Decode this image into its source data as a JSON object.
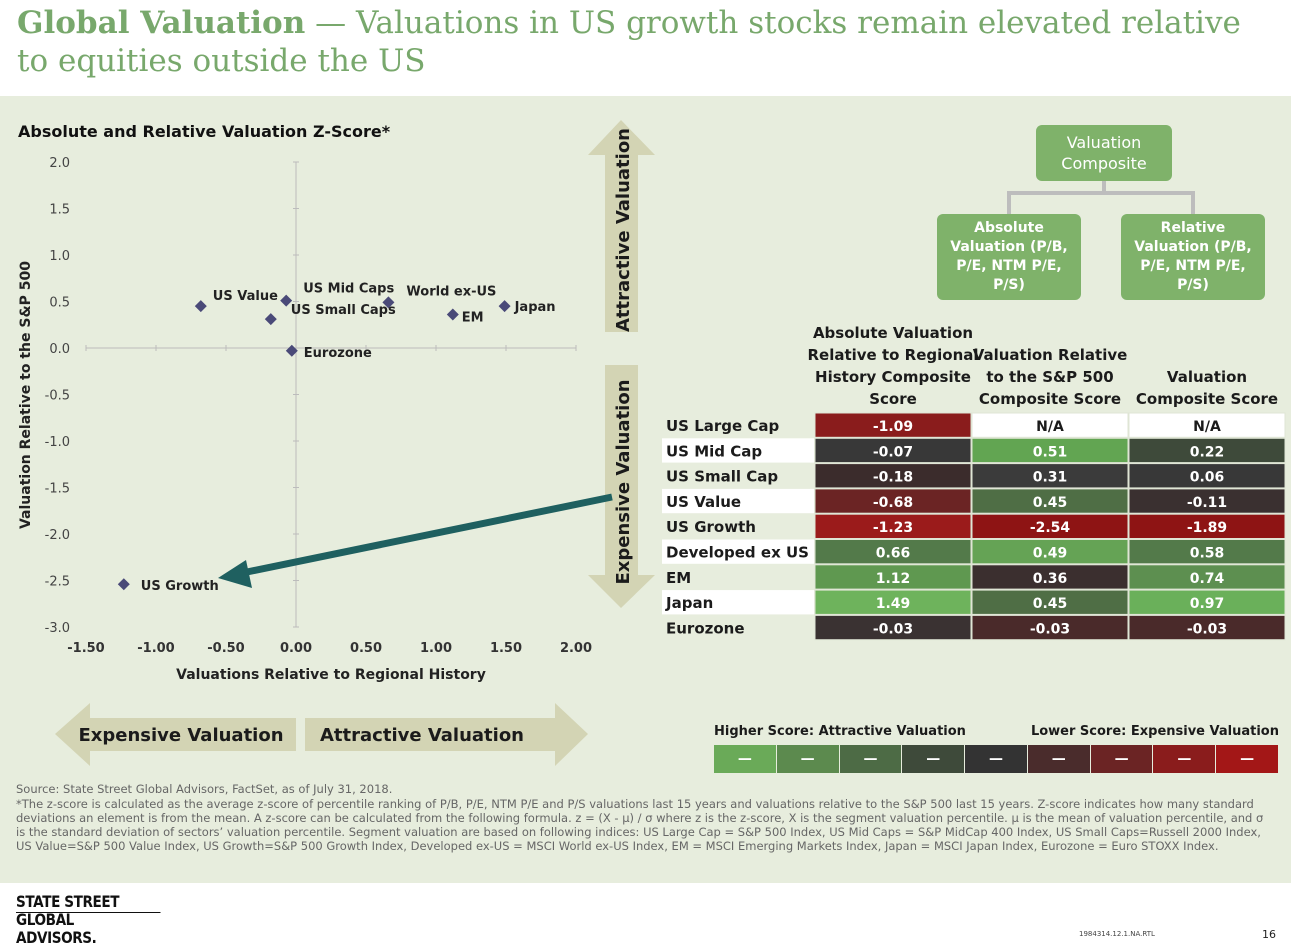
{
  "header": {
    "title_bold": "Global Valuation",
    "title_rest": " — Valuations in US growth stocks remain elevated relative to equities outside the US"
  },
  "chart_data": [
    {
      "type": "scatter",
      "title": "Absolute and Relative Valuation Z-Score*",
      "xlabel": "Valuations Relative to Regional History",
      "ylabel": "Valuation Relative to the S&P 500",
      "xlim": [
        -1.5,
        2.0
      ],
      "ylim": [
        -3.0,
        2.0
      ],
      "xticks": [
        -1.5,
        -1.0,
        -0.5,
        0.0,
        0.5,
        1.0,
        1.5,
        2.0
      ],
      "yticks": [
        -3.0,
        -2.5,
        -2.0,
        -1.5,
        -1.0,
        -0.5,
        0.0,
        0.5,
        1.0,
        1.5,
        2.0
      ],
      "xtick_labels": [
        "-1.50",
        "-1.00",
        "-0.50",
        "0.00",
        "0.50",
        "1.00",
        "1.50",
        "2.00"
      ],
      "ytick_labels": [
        "-3.0",
        "-2.5",
        "-2.0",
        "-1.5",
        "-1.0",
        "-0.5",
        "0.0",
        "0.5",
        "1.0",
        "1.5",
        "2.0"
      ],
      "grid": false,
      "marker_color": "#4a4a78",
      "points": [
        {
          "label": "US Value",
          "x": -0.68,
          "y": 0.45
        },
        {
          "label": "US Mid Caps",
          "x": -0.07,
          "y": 0.51
        },
        {
          "label": "US Small Caps",
          "x": -0.18,
          "y": 0.31
        },
        {
          "label": "World ex-US",
          "x": 0.66,
          "y": 0.49
        },
        {
          "label": "EM",
          "x": 1.12,
          "y": 0.36
        },
        {
          "label": "Japan",
          "x": 1.49,
          "y": 0.45
        },
        {
          "label": "Eurozone",
          "x": -0.03,
          "y": -0.03
        },
        {
          "label": "US Growth",
          "x": -1.23,
          "y": -2.54
        }
      ]
    },
    {
      "type": "table",
      "columns": [
        "Absolute Valuation Relative to Regional History Composite Score",
        "Valuation Relative to the S&P 500 Composite Score",
        "Valuation Composite Score"
      ],
      "rows": [
        {
          "name": "US Large Cap",
          "values": [
            "-1.09",
            "N/A",
            "N/A"
          ],
          "colors": [
            "#8a1c1c",
            "#ffffff",
            "#ffffff"
          ]
        },
        {
          "name": "US Mid Cap",
          "values": [
            "-0.07",
            "0.51",
            "0.22"
          ],
          "colors": [
            "#383838",
            "#62a552",
            "#3e4a3a"
          ]
        },
        {
          "name": "US Small Cap",
          "values": [
            "-0.18",
            "0.31",
            "0.06"
          ],
          "colors": [
            "#3b2c2c",
            "#3b3b3b",
            "#383838"
          ]
        },
        {
          "name": "US Value",
          "values": [
            "-0.68",
            "0.45",
            "-0.11"
          ],
          "colors": [
            "#6b2424",
            "#4f6e45",
            "#3a3030"
          ]
        },
        {
          "name": "US Growth",
          "values": [
            "-1.23",
            "-2.54",
            "-1.89"
          ],
          "colors": [
            "#9b1b1b",
            "#8e1414",
            "#8e1414"
          ]
        },
        {
          "name": "Developed ex US",
          "values": [
            "0.66",
            "0.49",
            "0.58"
          ],
          "colors": [
            "#537a4a",
            "#65a355",
            "#537a4a"
          ]
        },
        {
          "name": "EM",
          "values": [
            "1.12",
            "0.36",
            "0.74"
          ],
          "colors": [
            "#5f9850",
            "#3b2f2f",
            "#5d8f50"
          ]
        },
        {
          "name": "Japan",
          "values": [
            "1.49",
            "0.45",
            "0.97"
          ],
          "colors": [
            "#6eb35c",
            "#4f6e45",
            "#6ab05a"
          ]
        },
        {
          "name": "Eurozone",
          "values": [
            "-0.03",
            "-0.03",
            "-0.03"
          ],
          "colors": [
            "#3a3232",
            "#4a2a2a",
            "#4a2a2a"
          ]
        }
      ]
    }
  ],
  "arrows": {
    "vertical_up": "Attractive Valuation",
    "vertical_down": "Expensive Valuation",
    "horizontal_left": "Expensive Valuation",
    "horizontal_right": "Attractive Valuation",
    "fill_color": "#d3d4b4"
  },
  "hierarchy": {
    "top": "Valuation Composite",
    "left": "Absolute Valuation (P/B, P/E, NTM P/E, P/S)",
    "right": "Relative Valuation (P/B, P/E, NTM P/E, P/S)",
    "box_color": "#7fb26a"
  },
  "legend": {
    "left_label": "Higher Score: Attractive Valuation",
    "right_label": "Lower Score: Expensive Valuation",
    "swatch_text": "—",
    "swatches": [
      "#6aaa58",
      "#5c8a4e",
      "#4d6b45",
      "#3e4a3a",
      "#333333",
      "#4a2c2c",
      "#6b2424",
      "#8a1c1c",
      "#a31717"
    ]
  },
  "footer": {
    "source": "Source: State Street Global Advisors, FactSet, as of July 31, 2018.",
    "note": "*The z-score is calculated as the average z-score of percentile ranking of P/B, P/E, NTM P/E and P/S valuations last 15 years and valuations relative to the S&P 500 last 15 years. Z-score indicates how many standard deviations an element is from the mean. A z-score can be calculated from the following formula. z = (X - μ) / σ where z is the z-score, X is the segment valuation percentile. μ is the mean of valuation percentile, and σ is the standard deviation of sectors’ valuation percentile. Segment valuation are based on following indices: US Large Cap = S&P 500 Index, US Mid Caps = S&P MidCap 400 Index, US Small Caps=Russell 2000 Index, US Value=S&P 500 Value Index, US Growth=S&P 500 Growth Index, Developed ex-US = MSCI World ex-US Index, EM = MSCI Emerging Markets Index, Japan = MSCI Japan Index, Eurozone = Euro STOXX Index.",
    "logo_line1": "STATE STREET",
    "logo_line2": "GLOBAL ADVISORS.",
    "doc_code": "1984314.12.1.NA.RTL",
    "page_number": "16"
  }
}
